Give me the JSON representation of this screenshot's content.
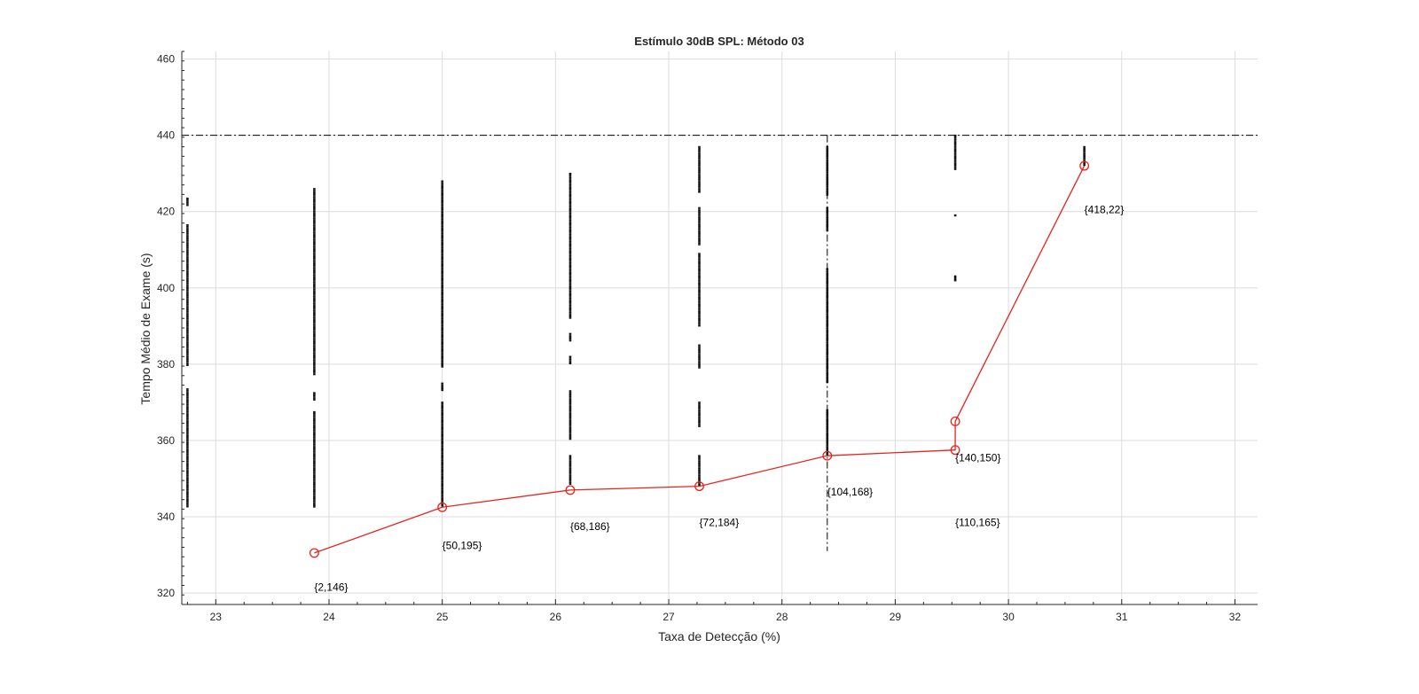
{
  "chart_data": {
    "type": "scatter",
    "title": "Estímulo 30dB SPL: Método 03",
    "xlabel": "Taxa de Detecção (%)",
    "ylabel": "Tempo Médio de Exame (s)",
    "xlim": [
      22.7,
      32.2
    ],
    "ylim": [
      317,
      462
    ],
    "xticks": [
      23,
      24,
      25,
      26,
      27,
      28,
      29,
      30,
      31,
      32
    ],
    "yticks": [
      320,
      340,
      360,
      380,
      400,
      420,
      440,
      460
    ],
    "grid": true,
    "reference_line": {
      "y": 440,
      "style": "dash-dot"
    },
    "vertical_line": {
      "x": 28.4,
      "y_from": 331,
      "y_to": 440,
      "style": "dash-dot"
    },
    "clouds": [
      {
        "x": 22.75,
        "segments": [
          [
            342.5,
            373.5
          ],
          [
            379.5,
            416.5
          ],
          [
            421.5,
            423.5
          ]
        ]
      },
      {
        "x": 23.87,
        "segments": [
          [
            342.5,
            367.5
          ],
          [
            370.5,
            372.5
          ],
          [
            377,
            426
          ]
        ]
      },
      {
        "x": 25.0,
        "segments": [
          [
            342.5,
            370
          ],
          [
            373,
            375
          ],
          [
            379,
            428
          ]
        ]
      },
      {
        "x": 26.13,
        "segments": [
          [
            348.5,
            356
          ],
          [
            360,
            373
          ],
          [
            380,
            382
          ],
          [
            386,
            388
          ],
          [
            392,
            430
          ]
        ]
      },
      {
        "x": 27.27,
        "segments": [
          [
            348,
            356
          ],
          [
            363.5,
            370
          ],
          [
            379,
            385
          ],
          [
            390,
            409
          ],
          [
            411,
            421
          ],
          [
            425,
            437
          ]
        ]
      },
      {
        "x": 28.4,
        "segments": [
          [
            356,
            368
          ],
          [
            375,
            405
          ],
          [
            415,
            421
          ],
          [
            424,
            437
          ]
        ]
      },
      {
        "x": 29.53,
        "segments": [
          [
            431,
            440
          ]
        ]
      },
      {
        "x": 29.53,
        "points": [
          419,
          402,
          402.5,
          403
        ]
      },
      {
        "x": 30.67,
        "segments": [
          [
            432,
            437
          ]
        ]
      }
    ],
    "series": [
      {
        "color": "#e8231c",
        "x": [
          23.87,
          25.0,
          26.13,
          27.27,
          28.4,
          29.53,
          29.53,
          30.67
        ],
        "y": [
          330.5,
          342.5,
          347,
          348,
          356,
          357.5,
          365,
          432
        ],
        "labels": [
          "{2,146}",
          "{50,195}",
          "{68,186}",
          "{72,184}",
          "{104,168}",
          "{110,165}",
          "{140,150}",
          "{418,22}"
        ],
        "label_y": [
          321.5,
          332.5,
          337.5,
          338.5,
          346.5,
          338.5,
          355.5,
          420.5
        ]
      }
    ]
  }
}
